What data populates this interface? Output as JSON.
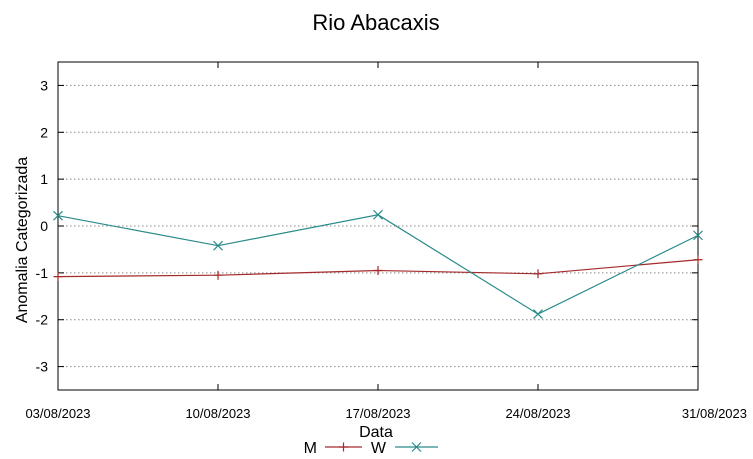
{
  "chart_data": {
    "type": "line",
    "title": "Rio Abacaxis",
    "xlabel": "Data",
    "ylabel": "Anomalia Categorizada",
    "categories": [
      "03/08/2023",
      "10/08/2023",
      "17/08/2023",
      "24/08/2023",
      "31/08/2023"
    ],
    "ylim": [
      -3.5,
      3.5
    ],
    "yticks": [
      "3",
      "2",
      "1",
      "0",
      "-1",
      "-2",
      "-3"
    ],
    "ytick_values": [
      3,
      2,
      1,
      0,
      -1,
      -2,
      -3
    ],
    "grid": true,
    "legend_position": "bottom-center",
    "series": [
      {
        "name": "M",
        "color": "#a52a2a",
        "marker": "plus",
        "values": [
          -1.08,
          -1.05,
          -0.95,
          -1.02,
          -0.72
        ]
      },
      {
        "name": "W",
        "color": "#2a8a8a",
        "marker": "cross",
        "values": [
          0.22,
          -0.42,
          0.24,
          -1.88,
          -0.2
        ]
      }
    ]
  }
}
